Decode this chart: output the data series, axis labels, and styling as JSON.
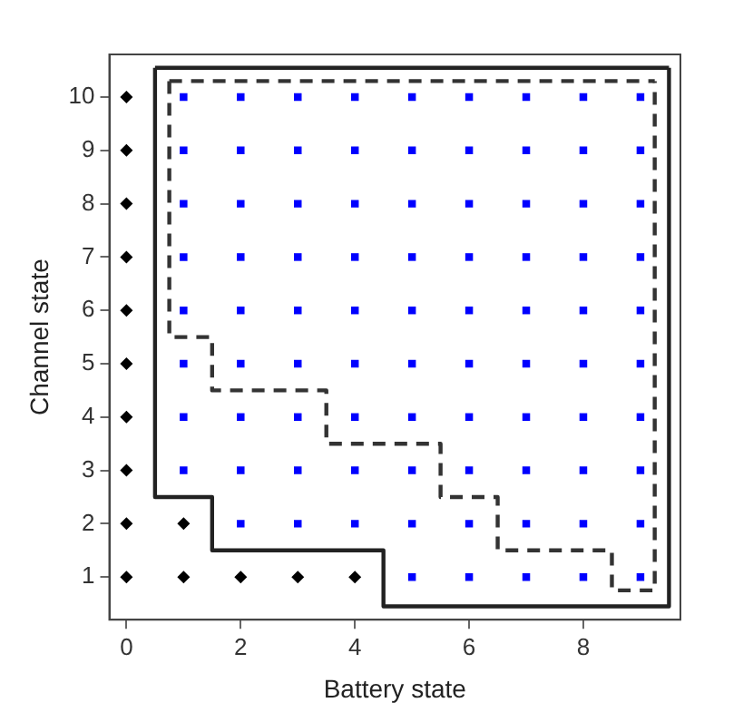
{
  "chart_data": {
    "type": "scatter",
    "xlabel": "Battery state",
    "ylabel": "Channel state",
    "xlim": [
      -0.3,
      9.7
    ],
    "ylim": [
      0.2,
      10.8
    ],
    "xticks": [
      0,
      2,
      4,
      6,
      8
    ],
    "yticks": [
      1,
      2,
      3,
      4,
      5,
      6,
      7,
      8,
      9,
      10
    ],
    "grid": false,
    "legend": false,
    "series": [
      {
        "type": "scatter",
        "marker": "diamond",
        "color": "#000000",
        "x": [
          0,
          0,
          0,
          0,
          0,
          0,
          0,
          0,
          0,
          0,
          1,
          1,
          2,
          3,
          4
        ],
        "values": [
          1,
          2,
          3,
          4,
          5,
          6,
          7,
          8,
          9,
          10,
          1,
          2,
          1,
          1,
          1
        ]
      },
      {
        "type": "scatter",
        "marker": "square",
        "color": "#0000ff",
        "x": [
          1,
          1,
          1,
          1,
          1,
          1,
          1,
          1,
          2,
          2,
          2,
          2,
          2,
          2,
          2,
          2,
          2,
          3,
          3,
          3,
          3,
          3,
          3,
          3,
          3,
          3,
          4,
          4,
          4,
          4,
          4,
          4,
          4,
          4,
          4,
          5,
          5,
          5,
          5,
          5,
          5,
          5,
          5,
          5,
          5,
          6,
          6,
          6,
          6,
          6,
          6,
          6,
          6,
          6,
          6,
          7,
          7,
          7,
          7,
          7,
          7,
          7,
          7,
          7,
          7,
          8,
          8,
          8,
          8,
          8,
          8,
          8,
          8,
          8,
          8,
          9,
          9,
          9,
          9,
          9,
          9,
          9,
          9,
          9,
          9
        ],
        "values": [
          3,
          4,
          5,
          6,
          7,
          8,
          9,
          10,
          2,
          3,
          4,
          5,
          6,
          7,
          8,
          9,
          10,
          2,
          3,
          4,
          5,
          6,
          7,
          8,
          9,
          10,
          2,
          3,
          4,
          5,
          6,
          7,
          8,
          9,
          10,
          1,
          2,
          3,
          4,
          5,
          6,
          7,
          8,
          9,
          10,
          1,
          2,
          3,
          4,
          5,
          6,
          7,
          8,
          9,
          10,
          1,
          2,
          3,
          4,
          5,
          6,
          7,
          8,
          9,
          10,
          1,
          2,
          3,
          4,
          5,
          6,
          7,
          8,
          9,
          10,
          1,
          2,
          3,
          4,
          5,
          6,
          7,
          8,
          9,
          10
        ]
      },
      {
        "type": "step",
        "line_style": "solid",
        "marker": "none",
        "color": "#222222",
        "x": [
          0.5,
          1.5,
          4.5,
          9.5,
          9.5
        ],
        "values": [
          10.55,
          2.5,
          1.5,
          0.45,
          10.55
        ]
      },
      {
        "type": "line",
        "line_style": "solid",
        "marker": "none",
        "color": "#222222",
        "x": [
          0.5,
          9.5
        ],
        "values": [
          10.55,
          10.55
        ]
      },
      {
        "type": "step",
        "line_style": "dashed",
        "marker": "none",
        "color": "#333333",
        "x": [
          0.75,
          1.5,
          3.5,
          5.5,
          6.5,
          8.5,
          9.25,
          9.25
        ],
        "values": [
          10.3,
          5.5,
          4.5,
          3.5,
          2.5,
          1.5,
          0.75,
          10.3
        ]
      },
      {
        "type": "line",
        "line_style": "dashed",
        "marker": "none",
        "color": "#333333",
        "x": [
          0.75,
          9.25
        ],
        "values": [
          10.3,
          10.3
        ]
      }
    ]
  }
}
